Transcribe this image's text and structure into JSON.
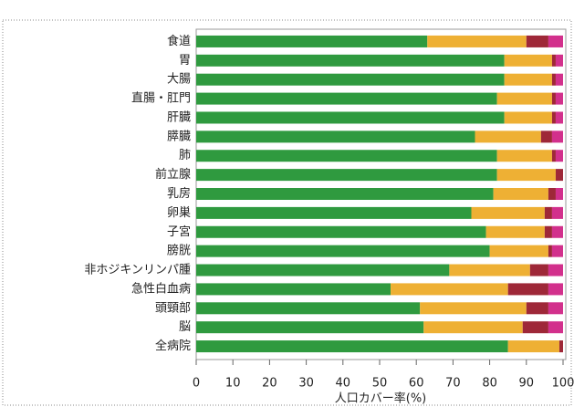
{
  "chart_data": {
    "type": "bar",
    "orientation": "horizontal",
    "stacked": true,
    "xlabel": "人口カバー率(%)",
    "categories": [
      "食道",
      "胃",
      "大腸",
      "直腸・肛門",
      "肝臓",
      "膵臓",
      "肺",
      "前立腺",
      "乳房",
      "卵巣",
      "子宮",
      "膀胱",
      "非ホジキンリンパ腫",
      "急性白血病",
      "頭頸部",
      "脳",
      "全病院"
    ],
    "series": [
      {
        "color": "#2f9a3f",
        "values": [
          63,
          84,
          84,
          82,
          84,
          76,
          82,
          82,
          81,
          75,
          79,
          80,
          69,
          53,
          61,
          62,
          85
        ]
      },
      {
        "color": "#eeb034",
        "values": [
          27,
          13,
          13,
          15,
          13,
          18,
          15,
          16,
          15,
          20,
          16,
          16,
          22,
          32,
          29,
          27,
          14
        ]
      },
      {
        "color": "#9e2838",
        "values": [
          6,
          1,
          1,
          1,
          1,
          3,
          1,
          2,
          2,
          2,
          2,
          1,
          5,
          11,
          6,
          7,
          1
        ]
      },
      {
        "color": "#d2308c",
        "values": [
          4,
          2,
          2,
          2,
          2,
          3,
          2,
          0,
          2,
          3,
          3,
          3,
          4,
          4,
          4,
          4,
          0
        ]
      }
    ],
    "xlim": [
      0,
      100
    ],
    "xticks": [
      0,
      10,
      20,
      30,
      40,
      50,
      60,
      70,
      80,
      90,
      100
    ]
  }
}
